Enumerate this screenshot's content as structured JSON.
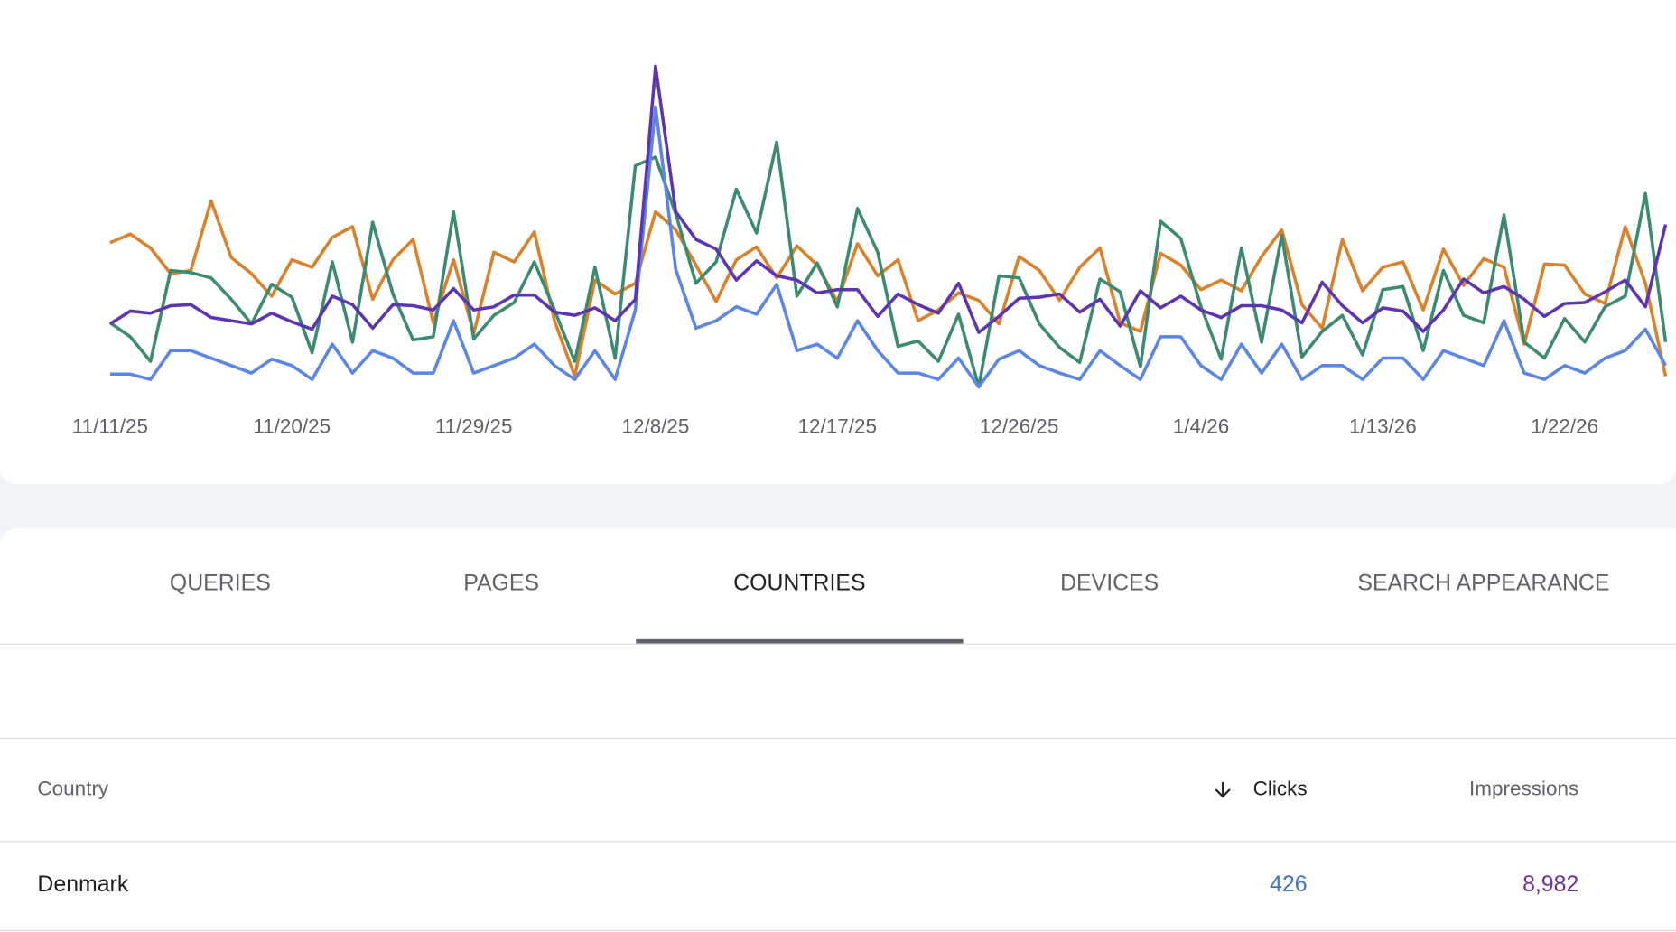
{
  "chart_data": {
    "type": "line",
    "categories": [
      "11/11/25",
      null,
      null,
      null,
      null,
      null,
      null,
      null,
      null,
      "11/20/25",
      null,
      null,
      null,
      null,
      null,
      null,
      null,
      null,
      "11/29/25",
      null,
      null,
      null,
      null,
      null,
      null,
      null,
      null,
      "12/8/25",
      null,
      null,
      null,
      null,
      null,
      null,
      null,
      null,
      "12/17/25",
      null,
      null,
      null,
      null,
      null,
      null,
      null,
      null,
      "12/26/25",
      null,
      null,
      null,
      null,
      null,
      null,
      null,
      null,
      "1/4/26",
      null,
      null,
      null,
      null,
      null,
      null,
      null,
      null,
      "1/13/26",
      null,
      null,
      null,
      null,
      null,
      null,
      null,
      null,
      "1/22/26",
      null,
      null,
      null,
      null,
      null
    ],
    "ylim": [
      0,
      380
    ],
    "series": [
      {
        "color": "#d9822b",
        "values": [
          153,
          161,
          148,
          124,
          127,
          192,
          139,
          124,
          103,
          137,
          130,
          158,
          168,
          100,
          137,
          156,
          78,
          137,
          68,
          144,
          135,
          163,
          80,
          28,
          118,
          105,
          115,
          182,
          165,
          132,
          98,
          137,
          149,
          120,
          150,
          132,
          98,
          152,
          122,
          137,
          80,
          90,
          106,
          99,
          77,
          140,
          127,
          99,
          130,
          148,
          78,
          70,
          143,
          132,
          109,
          118,
          108,
          140,
          165,
          95,
          73,
          156,
          108,
          130,
          135,
          90,
          147,
          113,
          138,
          130,
          58,
          133,
          132,
          105,
          96,
          168,
          115,
          28
        ]
      },
      {
        "color": "#3d8a72",
        "values": [
          78,
          65,
          42,
          127,
          125,
          120,
          100,
          77,
          114,
          102,
          50,
          135,
          60,
          172,
          105,
          62,
          65,
          182,
          63,
          85,
          97,
          135,
          90,
          42,
          130,
          45,
          225,
          233,
          180,
          115,
          135,
          203,
          162,
          247,
          103,
          134,
          93,
          185,
          144,
          56,
          61,
          42,
          86,
          18,
          122,
          120,
          77,
          55,
          41,
          119,
          107,
          37,
          173,
          157,
          93,
          44,
          148,
          60,
          160,
          46,
          70,
          85,
          48,
          109,
          112,
          52,
          127,
          85,
          78,
          179,
          60,
          45,
          82,
          60,
          93,
          103,
          199,
          60
        ]
      },
      {
        "color": "#5b86e5",
        "values": [
          30,
          30,
          25,
          52,
          52,
          45,
          38,
          31,
          44,
          38,
          25,
          58,
          31,
          52,
          45,
          31,
          31,
          80,
          31,
          38,
          45,
          58,
          38,
          25,
          52,
          25,
          90,
          280,
          128,
          73,
          80,
          93,
          86,
          114,
          52,
          58,
          45,
          80,
          52,
          31,
          31,
          25,
          45,
          18,
          44,
          52,
          38,
          31,
          25,
          52,
          38,
          25,
          65,
          65,
          38,
          25,
          58,
          31,
          58,
          25,
          38,
          38,
          25,
          45,
          45,
          25,
          52,
          45,
          38,
          80,
          31,
          25,
          38,
          31,
          45,
          52,
          72,
          38
        ]
      },
      {
        "color": "#5e35b1",
        "values": [
          77,
          89,
          87,
          94,
          95,
          83,
          80,
          77,
          87,
          79,
          72,
          103,
          95,
          73,
          95,
          94,
          90,
          110,
          90,
          93,
          104,
          104,
          88,
          85,
          92,
          80,
          100,
          318,
          182,
          156,
          147,
          118,
          136,
          122,
          118,
          106,
          109,
          109,
          84,
          105,
          95,
          87,
          115,
          69,
          84,
          101,
          102,
          105,
          88,
          100,
          75,
          108,
          92,
          103,
          90,
          83,
          94,
          94,
          90,
          78,
          116,
          94,
          78,
          92,
          89,
          70,
          90,
          119,
          106,
          112,
          100,
          84,
          96,
          97,
          107,
          118,
          93,
          170
        ]
      }
    ]
  },
  "tabs": {
    "items": [
      "QUERIES",
      "PAGES",
      "COUNTRIES",
      "DEVICES",
      "SEARCH APPEARANCE"
    ],
    "selected": 2
  },
  "table": {
    "columns": [
      "Country",
      "Clicks",
      "Impressions"
    ],
    "rows": [
      [
        "Denmark",
        "426",
        "8,982"
      ]
    ]
  }
}
